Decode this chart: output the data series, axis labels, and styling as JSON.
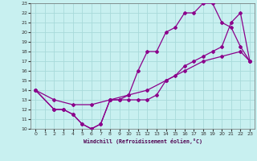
{
  "xlabel": "Windchill (Refroidissement éolien,°C)",
  "ylabel": "",
  "xlim": [
    -0.5,
    23.5
  ],
  "ylim": [
    10,
    23
  ],
  "xticks": [
    0,
    1,
    2,
    3,
    4,
    5,
    6,
    7,
    8,
    9,
    10,
    11,
    12,
    13,
    14,
    15,
    16,
    17,
    18,
    19,
    20,
    21,
    22,
    23
  ],
  "yticks": [
    10,
    11,
    12,
    13,
    14,
    15,
    16,
    17,
    18,
    19,
    20,
    21,
    22,
    23
  ],
  "background_color": "#c8f0f0",
  "line_color": "#8b008b",
  "grid_color": "#a8dada",
  "line1_x": [
    0,
    2,
    3,
    4,
    5,
    6,
    7,
    8,
    9,
    10,
    11,
    12,
    13,
    14,
    15,
    16,
    17,
    18,
    19,
    20,
    21,
    22,
    23
  ],
  "line1_y": [
    14,
    12,
    12,
    11.5,
    10.5,
    10,
    10.5,
    13,
    13,
    13.5,
    16,
    18,
    18,
    20,
    20.5,
    22,
    22,
    23,
    23,
    21,
    20.5,
    18.5,
    17
  ],
  "line2_x": [
    0,
    2,
    3,
    4,
    5,
    6,
    7,
    8,
    9,
    10,
    11,
    12,
    13,
    14,
    15,
    16,
    17,
    18,
    19,
    20,
    21,
    22,
    23
  ],
  "line2_y": [
    14,
    12,
    12,
    11.5,
    10.5,
    10,
    10.5,
    13,
    13,
    13,
    13,
    13,
    13.5,
    15,
    15.5,
    16.5,
    17,
    17.5,
    18,
    18.5,
    21,
    22,
    17
  ],
  "line3_x": [
    0,
    2,
    4,
    6,
    8,
    10,
    12,
    14,
    16,
    18,
    20,
    22,
    23
  ],
  "line3_y": [
    14,
    13,
    12.5,
    12.5,
    13,
    13.5,
    14,
    15,
    16,
    17,
    17.5,
    18,
    17
  ]
}
